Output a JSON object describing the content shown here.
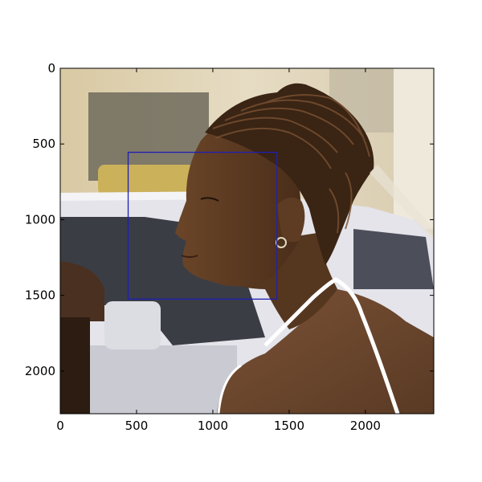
{
  "chart_data": {
    "type": "image",
    "title": "",
    "xlabel": "",
    "ylabel": "",
    "xlim": [
      0,
      2448
    ],
    "ylim": [
      2282,
      0
    ],
    "x_ticks": [
      {
        "value": 0,
        "label": "0"
      },
      {
        "value": 500,
        "label": "500"
      },
      {
        "value": 1000,
        "label": "1000"
      },
      {
        "value": 1500,
        "label": "1500"
      },
      {
        "value": 2000,
        "label": "2000"
      }
    ],
    "y_ticks": [
      {
        "value": 0,
        "label": "0"
      },
      {
        "value": 500,
        "label": "500"
      },
      {
        "value": 1000,
        "label": "1000"
      },
      {
        "value": 1500,
        "label": "1500"
      },
      {
        "value": 2000,
        "label": "2000"
      }
    ],
    "annotation_box": {
      "x0": 445,
      "y0": 555,
      "x1": 1420,
      "y1": 1525,
      "color": "#1f1fb4"
    },
    "grid": false
  },
  "colors": {
    "background_cream": "#e6dcc3",
    "car_white": "#e8e8ee",
    "skin": "#5a3a22",
    "hair": "#3a2414",
    "dress_strap": "#ffffff"
  }
}
